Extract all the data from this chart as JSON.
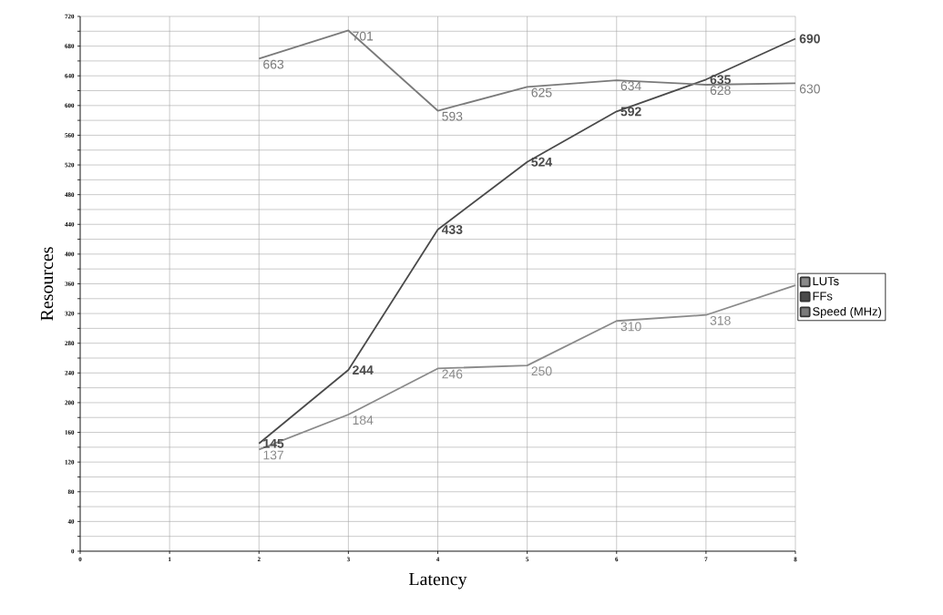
{
  "chart_data": {
    "type": "line",
    "xlabel": "Latency",
    "ylabel": "Resources",
    "x": [
      2,
      3,
      4,
      5,
      6,
      7,
      8
    ],
    "series": [
      {
        "name": "LUTs",
        "color": "#8a8a8a",
        "values": [
          137,
          184,
          246,
          250,
          310,
          318,
          358
        ],
        "value_labels": [
          "137",
          "184",
          "246",
          "250",
          "310",
          "318",
          null
        ]
      },
      {
        "name": "FFs",
        "color": "#4a4a4a",
        "values": [
          145,
          244,
          433,
          524,
          592,
          635,
          690
        ],
        "value_labels": [
          "145",
          "244",
          "433",
          "524",
          "592",
          "635",
          "690"
        ]
      },
      {
        "name": "Speed (MHz)",
        "color": "#7a7a7a",
        "values": [
          663,
          701,
          593,
          625,
          634,
          628,
          630
        ],
        "value_labels": [
          "663",
          "701",
          "593",
          "625",
          "634",
          "628",
          "630"
        ]
      }
    ],
    "xlim": [
      0,
      8
    ],
    "ylim": [
      0,
      720
    ],
    "xticks": [
      0,
      1,
      2,
      3,
      4,
      5,
      6,
      7,
      8
    ],
    "yticks": [
      0,
      {
        "value": 20,
        "label": null
      },
      40,
      {
        "value": 60,
        "label": null
      },
      80,
      {
        "value": 100,
        "label": null
      },
      120,
      {
        "value": 140,
        "label": null
      },
      160,
      {
        "value": 180,
        "label": null
      },
      200,
      {
        "value": 220,
        "label": null
      },
      240,
      {
        "value": 260,
        "label": null
      },
      280,
      {
        "value": 300,
        "label": null
      },
      320,
      {
        "value": 340,
        "label": null
      },
      360,
      {
        "value": 380,
        "label": null
      },
      400,
      {
        "value": 420,
        "label": null
      },
      440,
      {
        "value": 460,
        "label": null
      },
      480,
      {
        "value": 500,
        "label": null
      },
      520,
      {
        "value": 540,
        "label": null
      },
      560,
      {
        "value": 580,
        "label": null
      },
      600,
      {
        "value": 620,
        "label": null
      },
      640,
      {
        "value": 660,
        "label": null
      },
      680,
      {
        "value": 700,
        "label": null
      },
      720
    ],
    "grid": true,
    "legend": "right",
    "marker": "none",
    "line_style": "solid"
  }
}
